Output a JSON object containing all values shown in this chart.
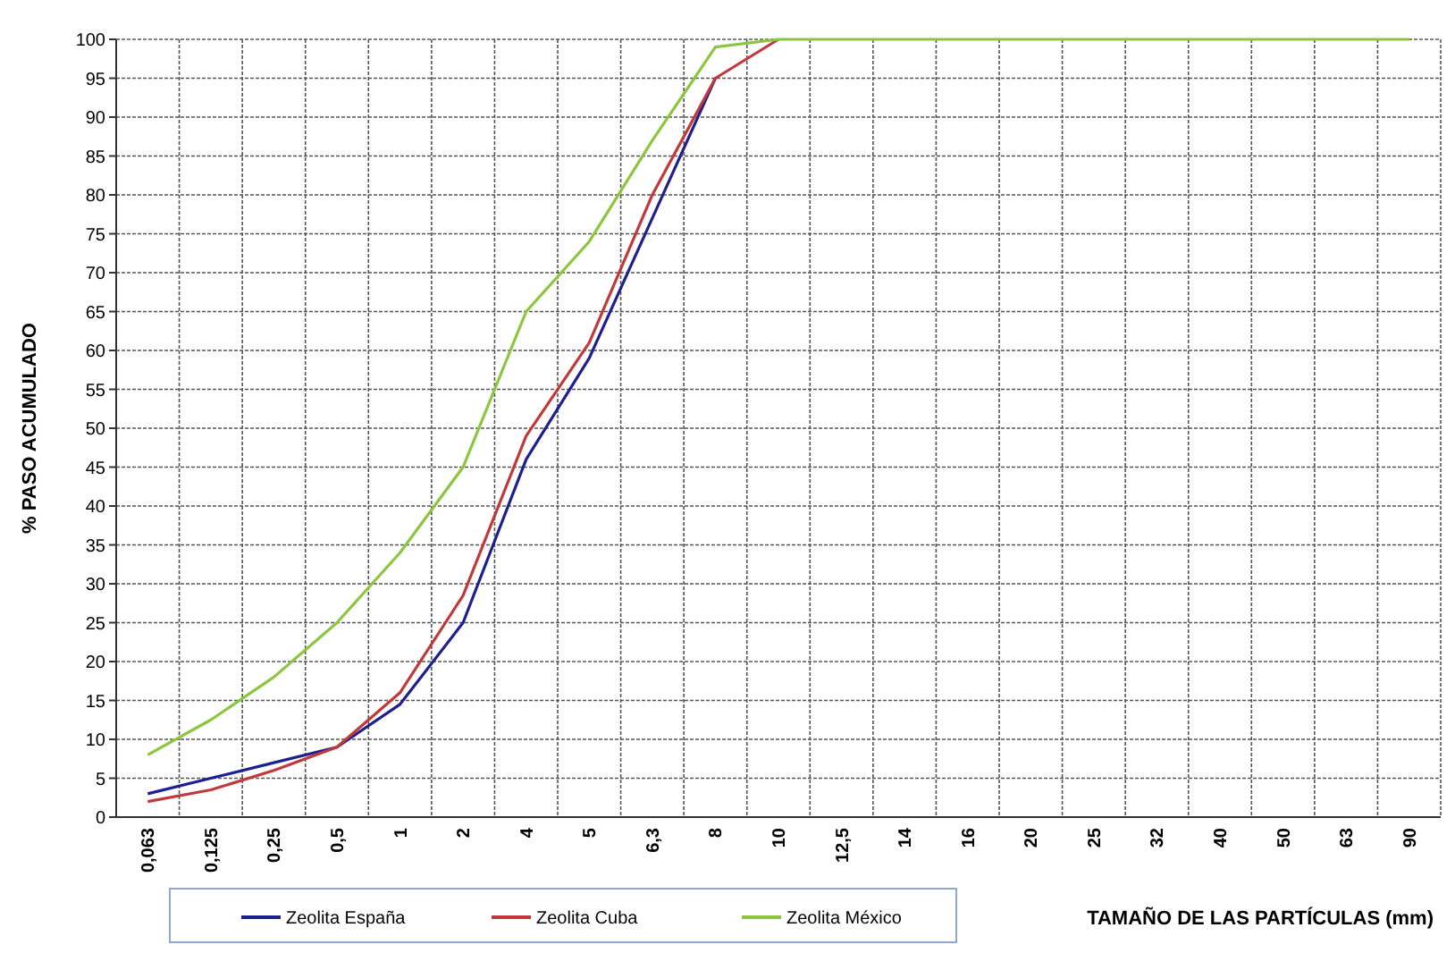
{
  "chart_data": {
    "type": "line",
    "xlabel": "TAMAÑO DE LAS PARTÍCULAS (mm)",
    "ylabel": "% PASO ACUMULADO",
    "categories": [
      "0,063",
      "0,125",
      "0,25",
      "0,5",
      "1",
      "2",
      "4",
      "5",
      "6,3",
      "8",
      "10",
      "12,5",
      "14",
      "16",
      "20",
      "25",
      "32",
      "40",
      "50",
      "63",
      "90"
    ],
    "series": [
      {
        "name": "Zeolita España",
        "color": "#1f1f8f",
        "values": [
          3,
          5,
          7,
          9,
          14.5,
          25,
          46,
          59,
          77,
          95,
          null,
          null,
          null,
          null,
          null,
          null,
          null,
          null,
          null,
          null,
          null
        ]
      },
      {
        "name": "Zeolita Cuba",
        "color": "#c0393b",
        "values": [
          2,
          3.5,
          6,
          9,
          16,
          28.5,
          49,
          61,
          80,
          95,
          100,
          null,
          null,
          null,
          null,
          null,
          null,
          null,
          null,
          null,
          null
        ]
      },
      {
        "name": "Zeolita México",
        "color": "#8cc63f",
        "values": [
          8,
          12.5,
          18,
          25,
          34,
          45,
          65,
          74,
          87,
          99,
          100,
          100,
          100,
          100,
          100,
          100,
          100,
          100,
          100,
          100,
          100
        ]
      }
    ],
    "ylim": [
      0,
      100
    ],
    "yticks": [
      0,
      5,
      10,
      15,
      20,
      25,
      30,
      35,
      40,
      45,
      50,
      55,
      60,
      65,
      70,
      75,
      80,
      85,
      90,
      95,
      100
    ],
    "grid": true,
    "legend": "bottom",
    "marker": "none",
    "line_style": "solid"
  }
}
